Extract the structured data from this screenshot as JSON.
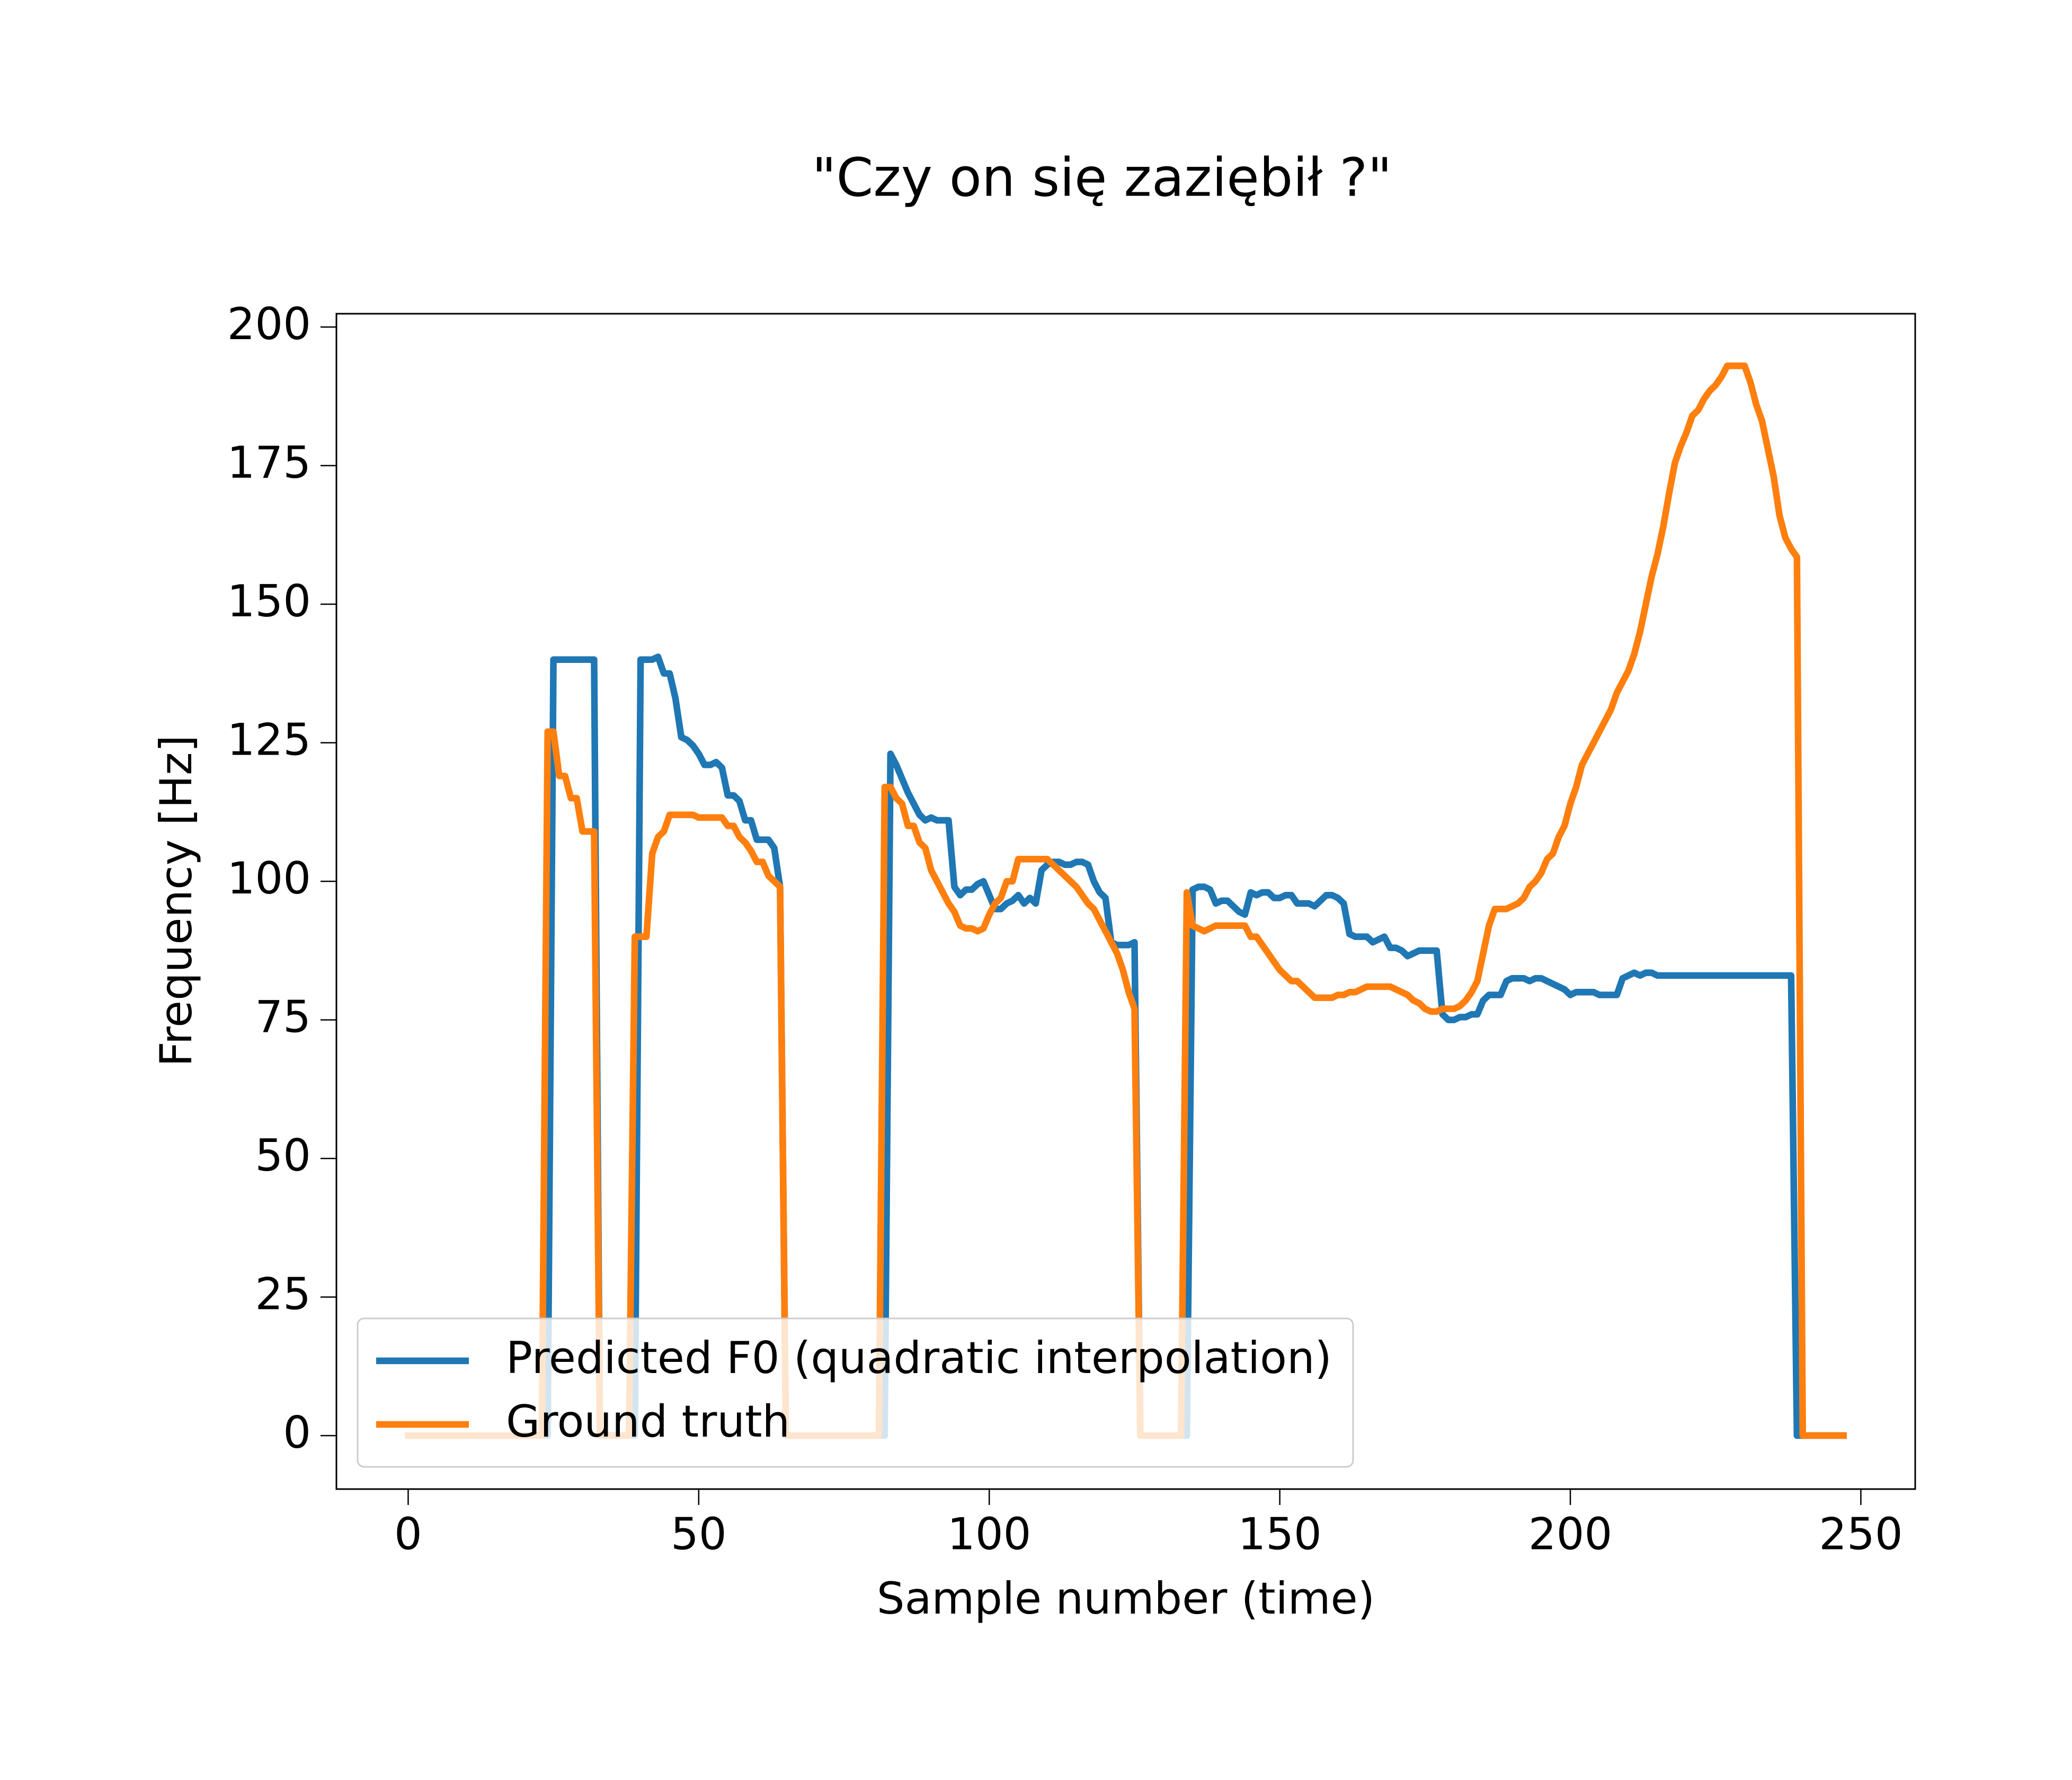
{
  "chart_data": {
    "type": "line",
    "title": "\"Czy on się zaziębił ?\"",
    "x_label": "Sample number (time)",
    "y_label": "Frequency [Hz]",
    "xlim": [
      -12.35,
      259.35
    ],
    "ylim": [
      -9.65,
      202.4
    ],
    "xticks": [
      0,
      50,
      100,
      150,
      200,
      250
    ],
    "yticks": [
      0,
      25,
      50,
      75,
      100,
      125,
      150,
      175,
      200
    ],
    "grid": false,
    "legend": "lower left",
    "x": [
      0,
      1,
      2,
      3,
      4,
      5,
      6,
      7,
      8,
      9,
      10,
      11,
      12,
      13,
      14,
      15,
      16,
      17,
      18,
      19,
      20,
      21,
      22,
      23,
      24,
      25,
      26,
      27,
      28,
      29,
      30,
      31,
      32,
      33,
      34,
      35,
      36,
      37,
      38,
      39,
      40,
      41,
      42,
      43,
      44,
      45,
      46,
      47,
      48,
      49,
      50,
      51,
      52,
      53,
      54,
      55,
      56,
      57,
      58,
      59,
      60,
      61,
      62,
      63,
      64,
      65,
      66,
      67,
      68,
      69,
      70,
      71,
      72,
      73,
      74,
      75,
      76,
      77,
      78,
      79,
      80,
      81,
      82,
      83,
      84,
      85,
      86,
      87,
      88,
      89,
      90,
      91,
      92,
      93,
      94,
      95,
      96,
      97,
      98,
      99,
      100,
      101,
      102,
      103,
      104,
      105,
      106,
      107,
      108,
      109,
      110,
      111,
      112,
      113,
      114,
      115,
      116,
      117,
      118,
      119,
      120,
      121,
      122,
      123,
      124,
      125,
      126,
      127,
      128,
      129,
      130,
      131,
      132,
      133,
      134,
      135,
      136,
      137,
      138,
      139,
      140,
      141,
      142,
      143,
      144,
      145,
      146,
      147,
      148,
      149,
      150,
      151,
      152,
      153,
      154,
      155,
      156,
      157,
      158,
      159,
      160,
      161,
      162,
      163,
      164,
      165,
      166,
      167,
      168,
      169,
      170,
      171,
      172,
      173,
      174,
      175,
      176,
      177,
      178,
      179,
      180,
      181,
      182,
      183,
      184,
      185,
      186,
      187,
      188,
      189,
      190,
      191,
      192,
      193,
      194,
      195,
      196,
      197,
      198,
      199,
      200,
      201,
      202,
      203,
      204,
      205,
      206,
      207,
      208,
      209,
      210,
      211,
      212,
      213,
      214,
      215,
      216,
      217,
      218,
      219,
      220,
      221,
      222,
      223,
      224,
      225,
      226,
      227,
      228,
      229,
      230,
      231,
      232,
      233,
      234,
      235,
      236,
      237,
      238,
      239,
      240,
      241,
      242,
      243,
      244,
      245,
      246,
      247
    ],
    "series": [
      {
        "name": "Predicted F0 (quadratic interpolation)",
        "color": "#1f77b4",
        "values": [
          0,
          0,
          0,
          0,
          0,
          0,
          0,
          0,
          0,
          0,
          0,
          0,
          0,
          0,
          0,
          0,
          0,
          0,
          0,
          0,
          0,
          0,
          0,
          0,
          0,
          140,
          140,
          140,
          140,
          140,
          140,
          140,
          140,
          0,
          0,
          0,
          0,
          0,
          0,
          0,
          140,
          140,
          140,
          140.5,
          137.5,
          137.5,
          133,
          126,
          125.5,
          124.5,
          123,
          121,
          121,
          121.5,
          120.5,
          115.5,
          115.5,
          114.5,
          111,
          111,
          107.5,
          107.5,
          107.5,
          106,
          99,
          0,
          0,
          0,
          0,
          0,
          0,
          0,
          0,
          0,
          0,
          0,
          0,
          0,
          0,
          0,
          0,
          0,
          0,
          123,
          121,
          118.5,
          116,
          114,
          112,
          111,
          111.5,
          111,
          111,
          111,
          99,
          97.5,
          98.5,
          98.5,
          99.5,
          100,
          97.5,
          95,
          95,
          96,
          96.5,
          97.5,
          96,
          97,
          96,
          102,
          103,
          103.5,
          103.5,
          103,
          103,
          103.5,
          103.5,
          103,
          100,
          98,
          97,
          89,
          88.5,
          88.5,
          88.5,
          89,
          0,
          0,
          0,
          0,
          0,
          0,
          0,
          0,
          0,
          98.5,
          99,
          99,
          98.5,
          96,
          96.5,
          96.5,
          95.5,
          94.5,
          94,
          98,
          97.5,
          98,
          98,
          97,
          97,
          97.5,
          97.5,
          96,
          96,
          96,
          95.5,
          96.5,
          97.5,
          97.5,
          97,
          96,
          90.5,
          90,
          90,
          90,
          89,
          89.5,
          90,
          88,
          88,
          87.5,
          86.5,
          87,
          87.5,
          87.5,
          87.5,
          87.5,
          76,
          75,
          75,
          75.5,
          75.5,
          76,
          76,
          78.5,
          79.5,
          79.5,
          79.5,
          82,
          82.5,
          82.5,
          82.5,
          82,
          82.5,
          82.5,
          82,
          81.5,
          81,
          80.5,
          79.5,
          80,
          80,
          80,
          80,
          79.5,
          79.5,
          79.5,
          79.5,
          82.5,
          83,
          83.5,
          83,
          83.5,
          83.5,
          83,
          83,
          83,
          83,
          83,
          83,
          83,
          83,
          83,
          83,
          83,
          83,
          83,
          83,
          83,
          83,
          83,
          83,
          83,
          83,
          83,
          83,
          83,
          83,
          0,
          0,
          0,
          0,
          0,
          0,
          0,
          0,
          0
        ]
      },
      {
        "name": "Ground truth",
        "color": "#ff7f0e",
        "values": [
          0,
          0,
          0,
          0,
          0,
          0,
          0,
          0,
          0,
          0,
          0,
          0,
          0,
          0,
          0,
          0,
          0,
          0,
          0,
          0,
          0,
          0,
          0,
          0,
          127,
          127,
          119,
          119,
          115,
          115,
          109,
          109,
          109,
          0,
          0,
          0,
          0,
          0,
          0,
          90,
          90,
          90,
          105,
          108,
          109,
          112,
          112,
          112,
          112,
          112,
          111.5,
          111.5,
          111.5,
          111.5,
          111.5,
          110,
          110,
          108,
          107,
          105.5,
          103.5,
          103.5,
          101,
          100,
          99,
          0,
          0,
          0,
          0,
          0,
          0,
          0,
          0,
          0,
          0,
          0,
          0,
          0,
          0,
          0,
          0,
          0,
          117,
          117,
          115,
          114,
          110,
          110,
          107,
          106,
          102,
          100,
          98,
          96,
          94.5,
          92,
          91.5,
          91.5,
          91,
          91.5,
          94,
          96,
          97,
          100,
          100,
          104,
          104,
          104,
          104,
          104,
          104,
          103,
          102,
          101,
          100,
          99,
          97.5,
          96,
          95,
          93,
          91,
          89,
          87,
          84,
          80,
          77,
          0,
          0,
          0,
          0,
          0,
          0,
          0,
          0,
          98,
          92,
          91.5,
          91,
          91.5,
          92,
          92,
          92,
          92,
          92,
          92,
          90,
          90,
          88.5,
          87,
          85.5,
          84,
          83,
          82,
          82,
          81,
          80,
          79,
          79,
          79,
          79,
          79.5,
          79.5,
          80,
          80,
          80.5,
          81,
          81,
          81,
          81,
          81,
          80.5,
          80,
          79.5,
          78.5,
          78,
          77,
          76.5,
          76.5,
          77,
          77,
          77,
          77.5,
          78.5,
          80,
          82,
          87,
          92,
          95,
          95,
          95,
          95.5,
          96,
          97,
          99,
          100,
          101.5,
          104,
          105,
          108,
          110,
          114,
          117,
          121,
          123,
          125,
          127,
          129,
          131,
          134,
          136,
          138,
          141,
          145,
          150,
          155,
          159,
          164,
          170,
          175.5,
          178.5,
          181,
          184,
          185,
          187,
          188.5,
          189.5,
          191,
          193,
          193,
          193,
          193,
          190,
          186,
          183,
          178,
          173,
          166,
          162,
          160,
          158.5,
          0,
          0,
          0,
          0,
          0,
          0,
          0,
          0
        ]
      }
    ]
  }
}
